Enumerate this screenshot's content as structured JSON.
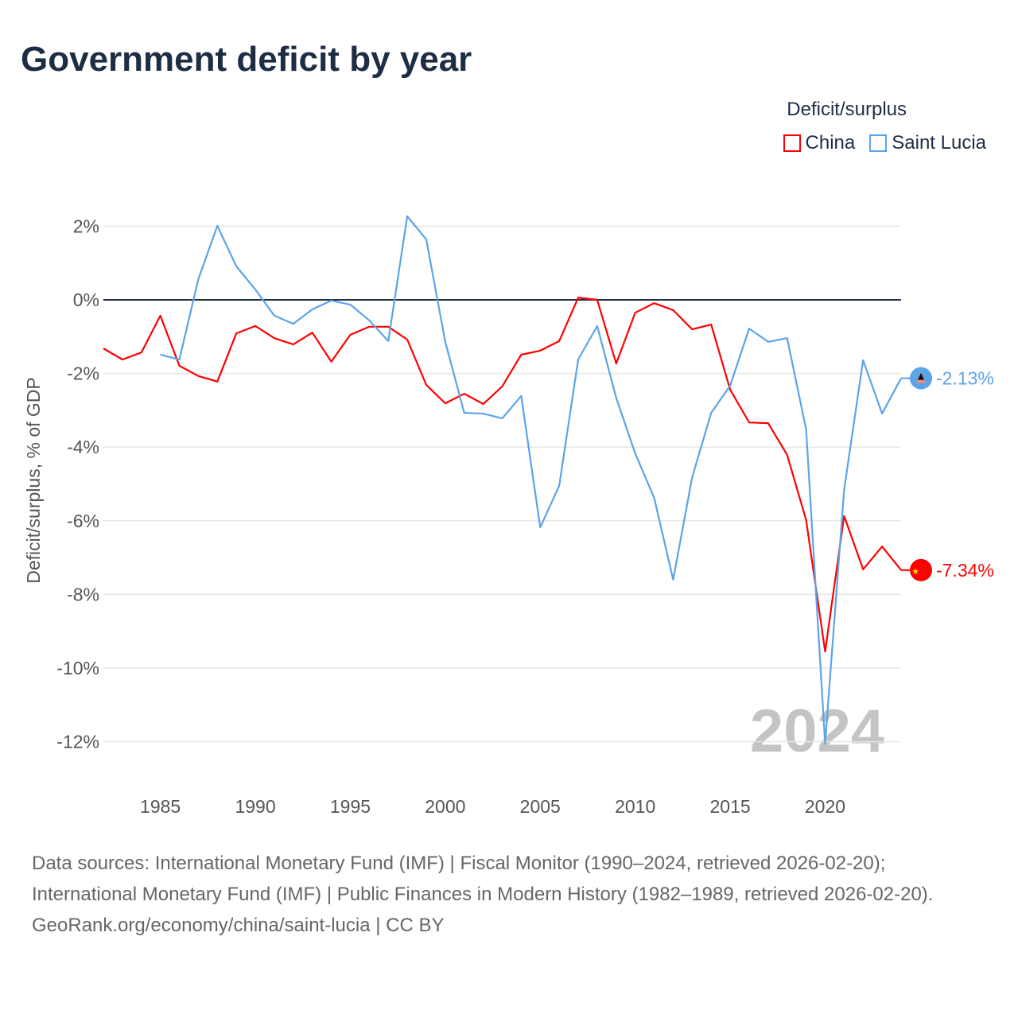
{
  "title": "Government deficit by year",
  "legend": {
    "title": "Deficit/surplus",
    "items": [
      {
        "label": "China",
        "color": "#ff0000"
      },
      {
        "label": "Saint Lucia",
        "color": "#5ba4e8"
      }
    ]
  },
  "watermark_year": "2024",
  "sources": "Data sources: International Monetary Fund (IMF) | Fiscal Monitor (1990–2024, retrieved 2026-02-20); International Monetary Fund (IMF) | Public Finances in Modern History (1982–1989, retrieved 2026-02-20).",
  "credit": "GeoRank.org/economy/china/saint-lucia | CC BY",
  "chart_data": {
    "type": "line",
    "title": "Government deficit by year",
    "ylabel": "Deficit/surplus, % of GDP",
    "xlabel": "",
    "xlim": [
      1982,
      2024
    ],
    "ylim": [
      -13,
      2.5
    ],
    "xticks": [
      1985,
      1990,
      1995,
      2000,
      2005,
      2010,
      2015,
      2020
    ],
    "yticks": [
      2,
      0,
      -2,
      -4,
      -6,
      -8,
      -10,
      -12
    ],
    "ytick_labels": [
      "2%",
      "0%",
      "-2%",
      "-4%",
      "-6%",
      "-8%",
      "-10%",
      "-12%"
    ],
    "grid": true,
    "legend_position": "top-right",
    "series": [
      {
        "name": "China",
        "color": "#ff0000",
        "start_year": 1982,
        "end_label": "-7.34%",
        "values": [
          -1.32,
          -1.62,
          -1.43,
          -0.43,
          -1.79,
          -2.07,
          -2.22,
          -0.91,
          -0.71,
          -1.04,
          -1.21,
          -0.89,
          -1.68,
          -0.95,
          -0.73,
          -0.73,
          -1.08,
          -2.31,
          -2.81,
          -2.55,
          -2.83,
          -2.35,
          -1.49,
          -1.38,
          -1.12,
          0.06,
          0.0,
          -1.73,
          -0.35,
          -0.09,
          -0.28,
          -0.8,
          -0.67,
          -2.44,
          -3.33,
          -3.35,
          -4.21,
          -5.98,
          -9.55,
          -5.87,
          -7.32,
          -6.7,
          -7.34
        ]
      },
      {
        "name": "Saint Lucia",
        "color": "#5ba4e8",
        "start_year": 1985,
        "end_label": "-2.13%",
        "values": [
          -1.49,
          -1.62,
          0.56,
          2.01,
          0.91,
          0.28,
          -0.43,
          -0.65,
          -0.26,
          -0.02,
          -0.13,
          -0.56,
          -1.12,
          2.27,
          1.64,
          -1.14,
          -3.07,
          -3.09,
          -3.22,
          -2.61,
          -6.18,
          -5.05,
          -1.62,
          -0.71,
          -2.66,
          -4.17,
          -5.38,
          -7.6,
          -4.82,
          -3.07,
          -2.33,
          -0.78,
          -1.14,
          -1.04,
          -3.52,
          -12.05,
          -5.16,
          -1.64,
          -3.09,
          -2.13
        ]
      }
    ]
  }
}
